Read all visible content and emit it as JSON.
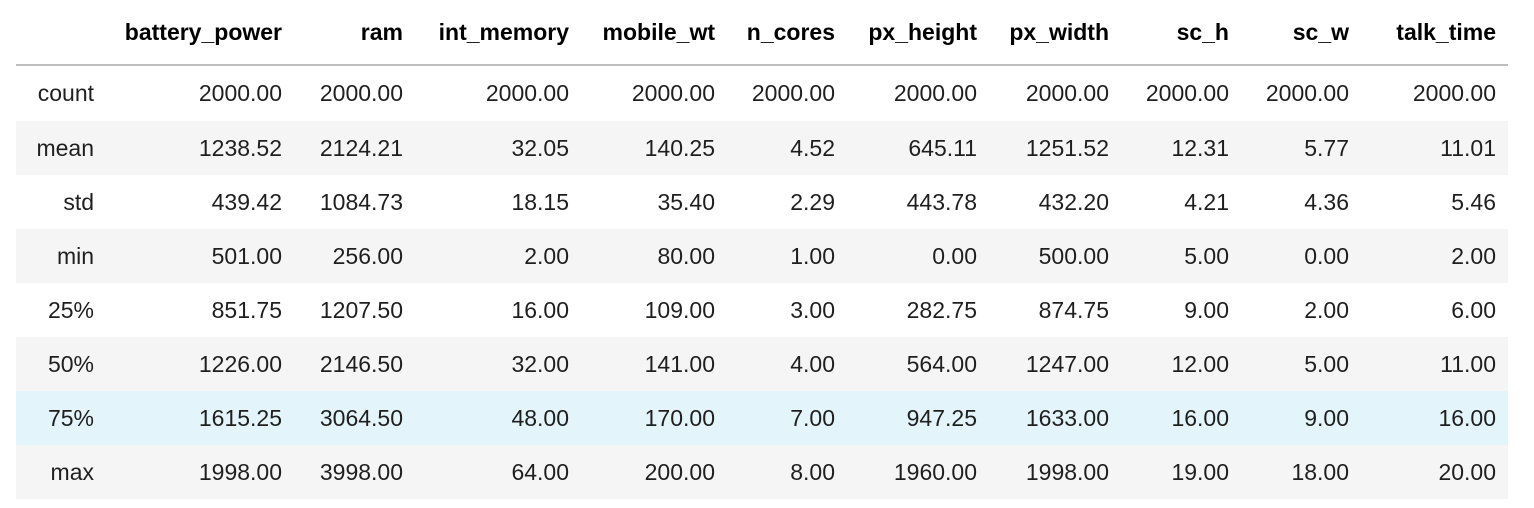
{
  "table": {
    "index_header": "",
    "columns": [
      "battery_power",
      "ram",
      "int_memory",
      "mobile_wt",
      "n_cores",
      "px_height",
      "px_width",
      "sc_h",
      "sc_w",
      "talk_time"
    ],
    "rows": [
      {
        "label": "count",
        "cells": [
          "2000.00",
          "2000.00",
          "2000.00",
          "2000.00",
          "2000.00",
          "2000.00",
          "2000.00",
          "2000.00",
          "2000.00",
          "2000.00"
        ]
      },
      {
        "label": "mean",
        "cells": [
          "1238.52",
          "2124.21",
          "32.05",
          "140.25",
          "4.52",
          "645.11",
          "1251.52",
          "12.31",
          "5.77",
          "11.01"
        ]
      },
      {
        "label": "std",
        "cells": [
          "439.42",
          "1084.73",
          "18.15",
          "35.40",
          "2.29",
          "443.78",
          "432.20",
          "4.21",
          "4.36",
          "5.46"
        ]
      },
      {
        "label": "min",
        "cells": [
          "501.00",
          "256.00",
          "2.00",
          "80.00",
          "1.00",
          "0.00",
          "500.00",
          "5.00",
          "0.00",
          "2.00"
        ]
      },
      {
        "label": "25%",
        "cells": [
          "851.75",
          "1207.50",
          "16.00",
          "109.00",
          "3.00",
          "282.75",
          "874.75",
          "9.00",
          "2.00",
          "6.00"
        ]
      },
      {
        "label": "50%",
        "cells": [
          "1226.00",
          "2146.50",
          "32.00",
          "141.00",
          "4.00",
          "564.00",
          "1247.00",
          "12.00",
          "5.00",
          "11.00"
        ]
      },
      {
        "label": "75%",
        "cells": [
          "1615.25",
          "3064.50",
          "48.00",
          "170.00",
          "7.00",
          "947.25",
          "1633.00",
          "16.00",
          "9.00",
          "16.00"
        ]
      },
      {
        "label": "max",
        "cells": [
          "1998.00",
          "3998.00",
          "64.00",
          "200.00",
          "8.00",
          "1960.00",
          "1998.00",
          "19.00",
          "18.00",
          "20.00"
        ]
      }
    ],
    "hovered_row": "75%"
  },
  "colors": {
    "header_border": "#bdbdbd",
    "striped_row": "#f5f5f5",
    "hover_row": "#e3f4fb"
  }
}
